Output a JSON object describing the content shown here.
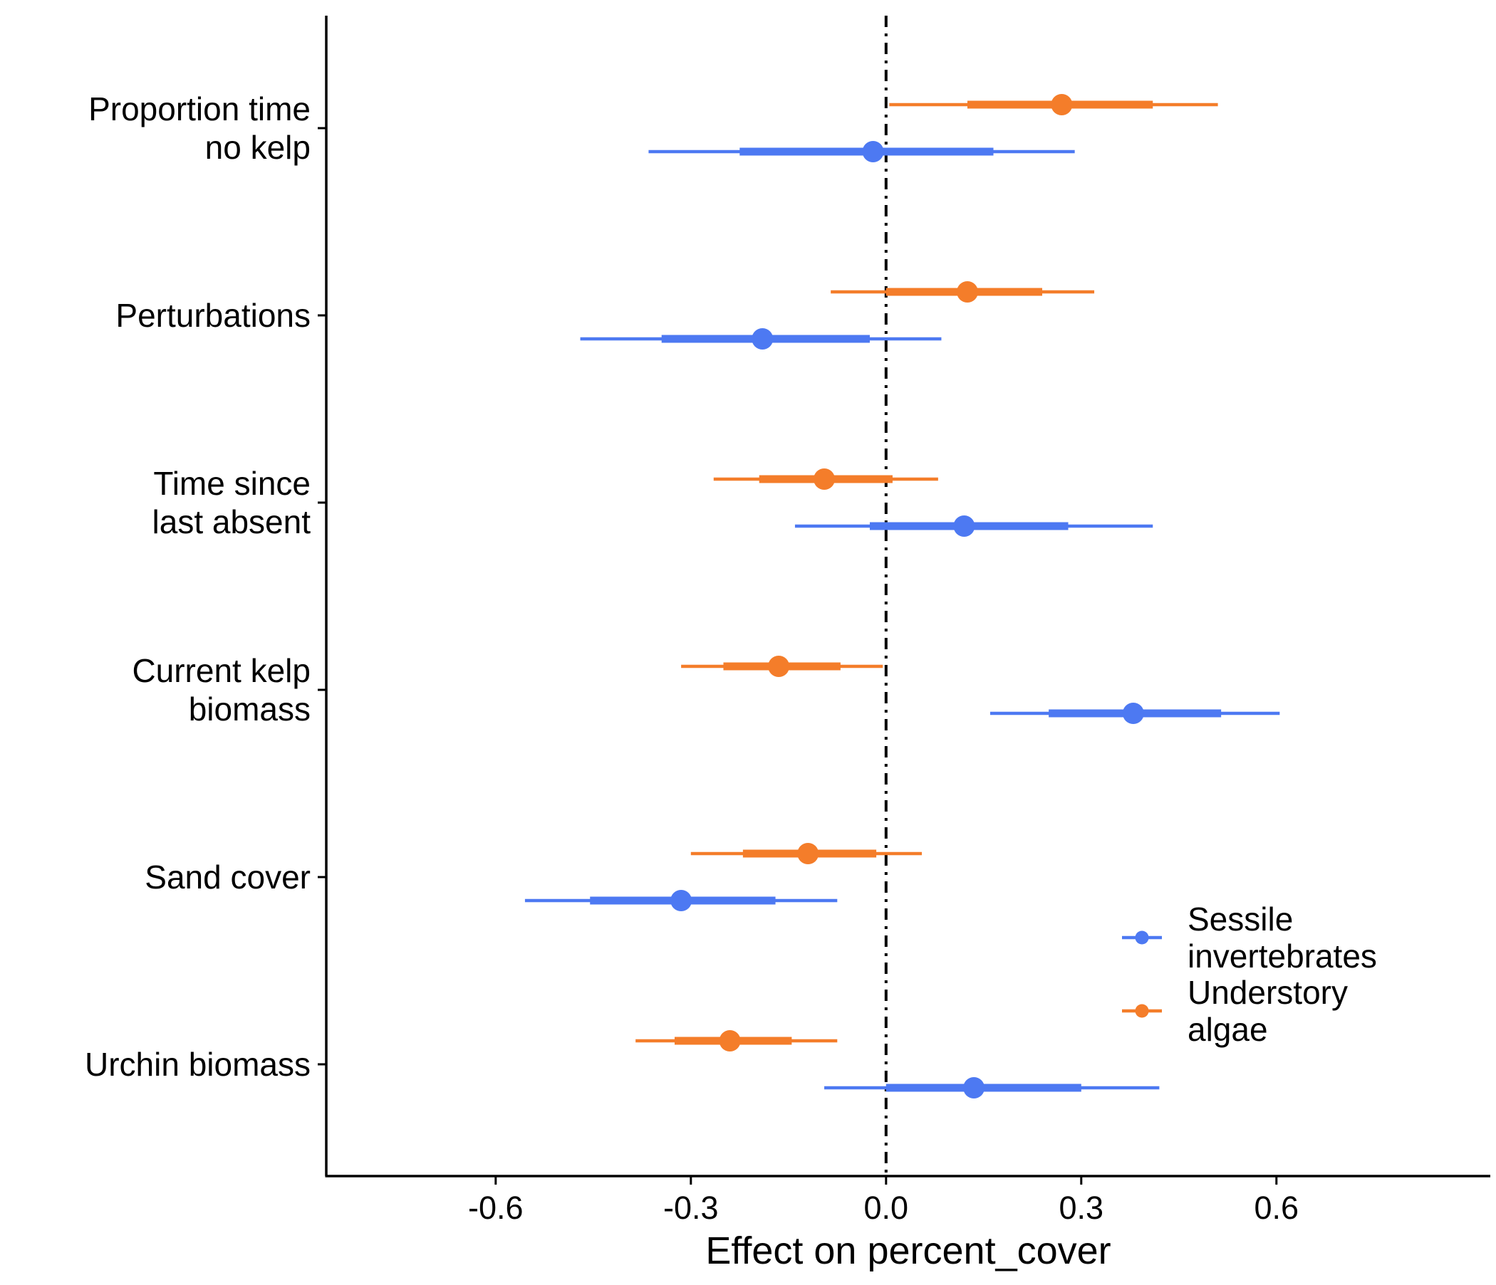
{
  "chart_data": {
    "type": "forest",
    "title": "",
    "xlabel": "Effect on percent_cover",
    "ylabel": "",
    "xlim": [
      -0.62,
      0.66
    ],
    "xticks": [
      -0.6,
      -0.3,
      0.0,
      0.3,
      0.6
    ],
    "xtick_labels": [
      "-0.6",
      "-0.3",
      "0.0",
      "0.3",
      "0.6"
    ],
    "reference_line": 0.0,
    "grid": false,
    "legend_position": "bottom-right inside",
    "categories": [
      {
        "label_lines": [
          "Proportion time",
          "no kelp"
        ]
      },
      {
        "label_lines": [
          "Perturbations"
        ]
      },
      {
        "label_lines": [
          "Time since",
          "last absent"
        ]
      },
      {
        "label_lines": [
          "Current kelp",
          "biomass"
        ]
      },
      {
        "label_lines": [
          "Sand cover"
        ]
      },
      {
        "label_lines": [
          "Urchin biomass"
        ]
      }
    ],
    "series": [
      {
        "name_lines": [
          "Understory",
          "algae"
        ],
        "color": "#F47D2A",
        "estimates": [
          0.27,
          0.125,
          -0.095,
          -0.165,
          -0.12,
          -0.24
        ],
        "inner": [
          [
            0.125,
            0.41
          ],
          [
            0.0,
            0.24
          ],
          [
            -0.195,
            0.01
          ],
          [
            -0.25,
            -0.07
          ],
          [
            -0.22,
            -0.015
          ],
          [
            -0.325,
            -0.145
          ]
        ],
        "outer": [
          [
            0.005,
            0.51
          ],
          [
            -0.085,
            0.32
          ],
          [
            -0.265,
            0.08
          ],
          [
            -0.315,
            -0.005
          ],
          [
            -0.3,
            0.055
          ],
          [
            -0.385,
            -0.075
          ]
        ]
      },
      {
        "name_lines": [
          "Sessile",
          "invertebrates"
        ],
        "color": "#4D79F2",
        "estimates": [
          -0.02,
          -0.19,
          0.12,
          0.38,
          -0.315,
          0.135
        ],
        "inner": [
          [
            -0.225,
            0.165
          ],
          [
            -0.345,
            -0.025
          ],
          [
            -0.025,
            0.28
          ],
          [
            0.25,
            0.515
          ],
          [
            -0.455,
            -0.17
          ],
          [
            0.0,
            0.3
          ]
        ],
        "outer": [
          [
            -0.365,
            0.29
          ],
          [
            -0.47,
            0.085
          ],
          [
            -0.14,
            0.41
          ],
          [
            0.16,
            0.605
          ],
          [
            -0.555,
            -0.075
          ],
          [
            -0.095,
            0.42
          ]
        ]
      }
    ],
    "legend_order": [
      1,
      0
    ]
  }
}
